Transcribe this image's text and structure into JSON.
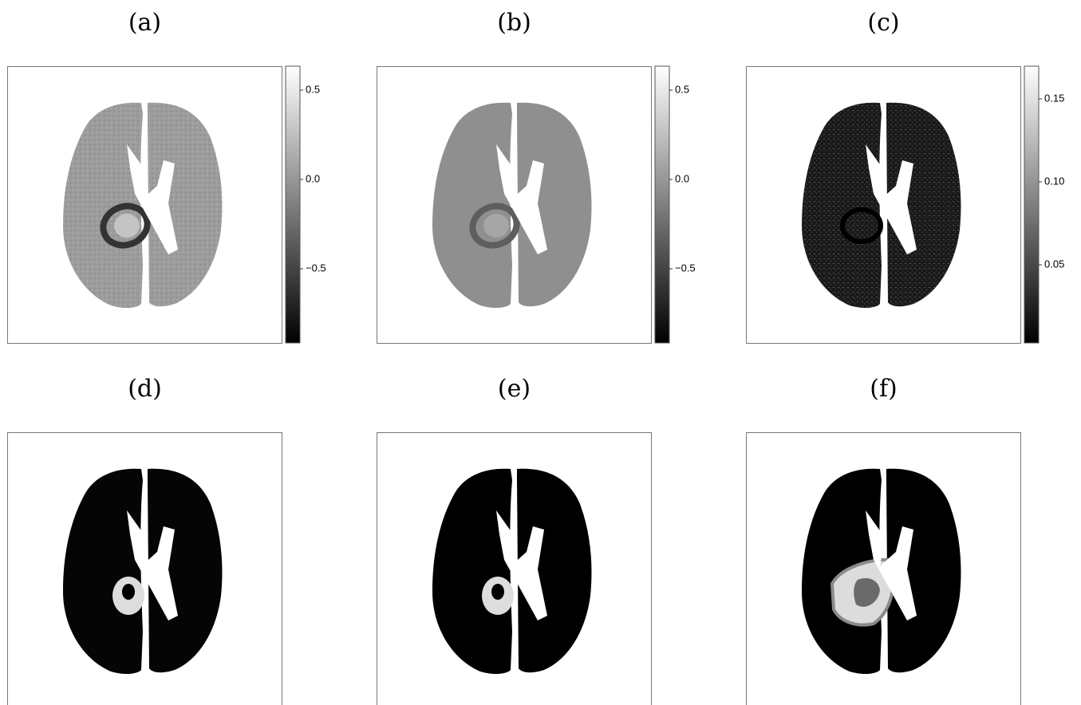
{
  "panels": [
    {
      "label": "(a)",
      "colorbar": {
        "lim": [
          -0.915,
          0.634
        ],
        "ticks": [
          0.5,
          {
            "value": 0,
            "label": "0.0"
          },
          {
            "value": -0.5,
            "label": "−0.5"
          }
        ]
      }
    },
    {
      "label": "(b)",
      "colorbar": {
        "lim": [
          -0.915,
          0.634
        ],
        "ticks": [
          0.5,
          {
            "value": 0,
            "label": "0.0"
          },
          {
            "value": -0.5,
            "label": "−0.5"
          }
        ]
      }
    },
    {
      "label": "(c)",
      "colorbar": {
        "lim": [
          0.0029,
          0.1697
        ],
        "ticks": [
          {
            "value": 0.15,
            "label": "0.15"
          },
          {
            "value": 0.1,
            "label": "0.10"
          },
          0.05
        ]
      }
    },
    {
      "label": "(d)"
    },
    {
      "label": "(e)"
    },
    {
      "label": "(f)"
    }
  ]
}
